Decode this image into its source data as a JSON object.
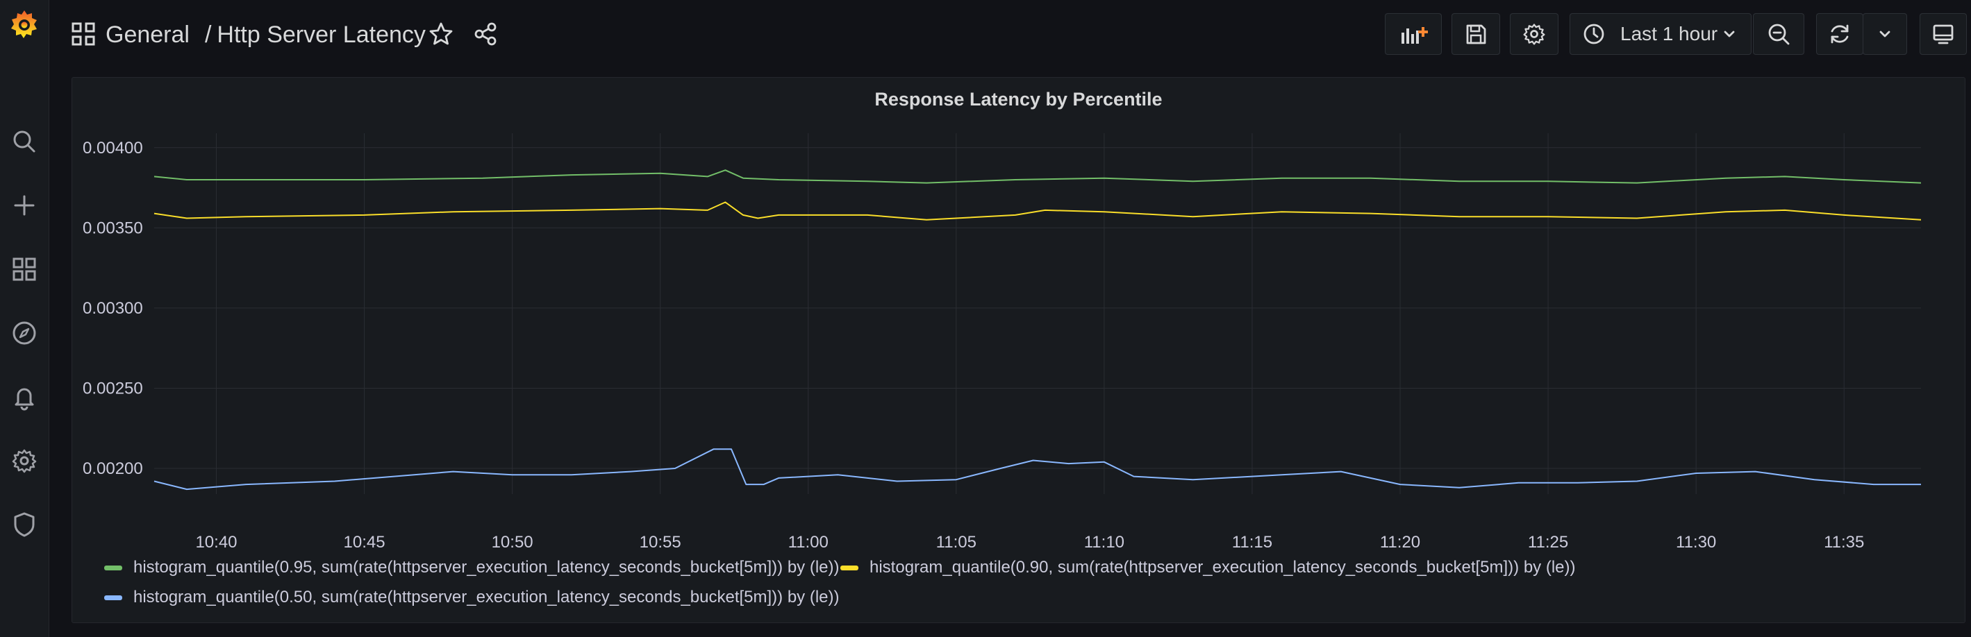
{
  "breadcrumb": {
    "folder": "General",
    "separator": "/",
    "dashboard": "Http Server Latency"
  },
  "time_picker": {
    "label": "Last 1 hour"
  },
  "panel": {
    "title": "Response Latency by Percentile"
  },
  "icons": {
    "sidebar": [
      "grafana-logo-icon",
      "search-icon",
      "plus-icon",
      "dashboards-icon",
      "explore-compass-icon",
      "alerting-bell-icon",
      "configuration-gear-icon",
      "shield-icon"
    ],
    "toolbar": [
      "add-panel-icon",
      "save-icon",
      "dashboard-settings-gear-icon",
      "clock-icon",
      "zoom-out-icon",
      "refresh-icon",
      "chevron-down-icon",
      "tv-mode-icon"
    ]
  },
  "chart_data": {
    "type": "line",
    "grid": true,
    "legend_position": "bottom",
    "yticks": [
      "0.00400",
      "0.00350",
      "0.00300",
      "0.00250",
      "0.00200"
    ],
    "ylim": [
      0.00184,
      0.00409
    ],
    "xticks": [
      "10:40",
      "10:45",
      "10:50",
      "10:55",
      "11:00",
      "11:05",
      "11:10",
      "11:15",
      "11:20",
      "11:25",
      "11:30",
      "11:35"
    ],
    "xrange_minutes": [
      637.9,
      697.6
    ],
    "series": [
      {
        "name": "histogram_quantile(0.95, sum(rate(httpserver_execution_latency_seconds_bucket[5m])) by (le))",
        "color": "#73bf69",
        "points": [
          [
            637.9,
            0.00382
          ],
          [
            639.0,
            0.0038
          ],
          [
            641.0,
            0.0038
          ],
          [
            645.0,
            0.0038
          ],
          [
            649.0,
            0.00381
          ],
          [
            652.0,
            0.00383
          ],
          [
            655.0,
            0.00384
          ],
          [
            656.6,
            0.00382
          ],
          [
            657.2,
            0.00386
          ],
          [
            657.8,
            0.00381
          ],
          [
            659.0,
            0.0038
          ],
          [
            662.0,
            0.00379
          ],
          [
            664.0,
            0.00378
          ],
          [
            667.0,
            0.0038
          ],
          [
            670.0,
            0.00381
          ],
          [
            673.0,
            0.00379
          ],
          [
            676.0,
            0.00381
          ],
          [
            679.0,
            0.00381
          ],
          [
            682.0,
            0.00379
          ],
          [
            685.0,
            0.00379
          ],
          [
            688.0,
            0.00378
          ],
          [
            691.0,
            0.00381
          ],
          [
            693.0,
            0.00382
          ],
          [
            695.0,
            0.0038
          ],
          [
            697.6,
            0.00378
          ]
        ]
      },
      {
        "name": "histogram_quantile(0.90, sum(rate(httpserver_execution_latency_seconds_bucket[5m])) by (le))",
        "color": "#fade2a",
        "points": [
          [
            637.9,
            0.00359
          ],
          [
            639.0,
            0.00356
          ],
          [
            641.0,
            0.00357
          ],
          [
            645.0,
            0.00358
          ],
          [
            648.0,
            0.0036
          ],
          [
            652.0,
            0.00361
          ],
          [
            655.0,
            0.00362
          ],
          [
            656.6,
            0.00361
          ],
          [
            657.2,
            0.00366
          ],
          [
            657.8,
            0.00358
          ],
          [
            658.3,
            0.00356
          ],
          [
            659.0,
            0.00358
          ],
          [
            662.0,
            0.00358
          ],
          [
            664.0,
            0.00355
          ],
          [
            667.0,
            0.00358
          ],
          [
            668.0,
            0.00361
          ],
          [
            670.0,
            0.0036
          ],
          [
            673.0,
            0.00357
          ],
          [
            676.0,
            0.0036
          ],
          [
            679.0,
            0.00359
          ],
          [
            682.0,
            0.00357
          ],
          [
            685.0,
            0.00357
          ],
          [
            688.0,
            0.00356
          ],
          [
            691.0,
            0.0036
          ],
          [
            693.0,
            0.00361
          ],
          [
            695.0,
            0.00358
          ],
          [
            697.6,
            0.00355
          ]
        ]
      },
      {
        "name": "histogram_quantile(0.50, sum(rate(httpserver_execution_latency_seconds_bucket[5m])) by (le))",
        "color": "#8ab8ff",
        "points": [
          [
            637.9,
            0.00192
          ],
          [
            639.0,
            0.00187
          ],
          [
            641.0,
            0.0019
          ],
          [
            644.0,
            0.00192
          ],
          [
            646.0,
            0.00195
          ],
          [
            648.0,
            0.00198
          ],
          [
            650.0,
            0.00196
          ],
          [
            652.0,
            0.00196
          ],
          [
            654.0,
            0.00198
          ],
          [
            655.5,
            0.002
          ],
          [
            656.8,
            0.00212
          ],
          [
            657.4,
            0.00212
          ],
          [
            657.9,
            0.0019
          ],
          [
            658.5,
            0.0019
          ],
          [
            659.0,
            0.00194
          ],
          [
            661.0,
            0.00196
          ],
          [
            663.0,
            0.00192
          ],
          [
            665.0,
            0.00193
          ],
          [
            666.5,
            0.002
          ],
          [
            667.6,
            0.00205
          ],
          [
            668.8,
            0.00203
          ],
          [
            670.0,
            0.00204
          ],
          [
            671.0,
            0.00195
          ],
          [
            673.0,
            0.00193
          ],
          [
            675.0,
            0.00195
          ],
          [
            676.0,
            0.00196
          ],
          [
            678.0,
            0.00198
          ],
          [
            680.0,
            0.0019
          ],
          [
            682.0,
            0.00188
          ],
          [
            684.0,
            0.00191
          ],
          [
            686.0,
            0.00191
          ],
          [
            688.0,
            0.00192
          ],
          [
            690.0,
            0.00197
          ],
          [
            692.0,
            0.00198
          ],
          [
            694.0,
            0.00193
          ],
          [
            696.0,
            0.0019
          ],
          [
            697.6,
            0.0019
          ]
        ]
      }
    ]
  }
}
